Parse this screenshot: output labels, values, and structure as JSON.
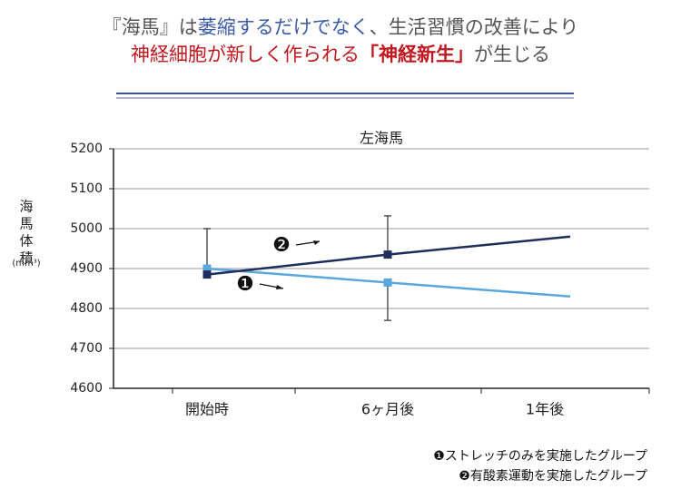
{
  "header": {
    "line1": [
      {
        "text": "『海馬』は",
        "color": "#555555"
      },
      {
        "text": "萎縮するだけでなく",
        "color": "#3b5ba8"
      },
      {
        "text": "、生活習慣の改善により",
        "color": "#555555"
      }
    ],
    "line2": [
      {
        "text": "神経細胞が新しく作られる",
        "color": "#c0181e"
      },
      {
        "text": "「神経新生」",
        "color": "#c0181e",
        "bold": true
      },
      {
        "text": "が生じる",
        "color": "#555555"
      }
    ]
  },
  "chart_data": {
    "type": "line",
    "title": "左海馬",
    "y_label": "海馬体積",
    "y_unit": "(mm³)",
    "categories": [
      "開始時",
      "6ヶ月後",
      "1年後"
    ],
    "series": [
      {
        "name": "❶ストレッチのみを実施したグループ",
        "marker_label": "❶",
        "color": "#5aa7dd",
        "values": [
          4900,
          4865,
          4830
        ],
        "errors": [
          null,
          95,
          null
        ],
        "error_direction": "down"
      },
      {
        "name": "❷有酸素運動を実施したグループ",
        "marker_label": "❷",
        "color": "#1f2d5c",
        "values": [
          4885,
          4935,
          4980
        ],
        "errors": [
          115,
          97,
          null
        ],
        "error_direction": "up"
      }
    ],
    "ylim": [
      4600,
      5200
    ],
    "yticks": [
      4600,
      4700,
      4800,
      4900,
      5000,
      5100,
      5200
    ],
    "grid": true
  }
}
